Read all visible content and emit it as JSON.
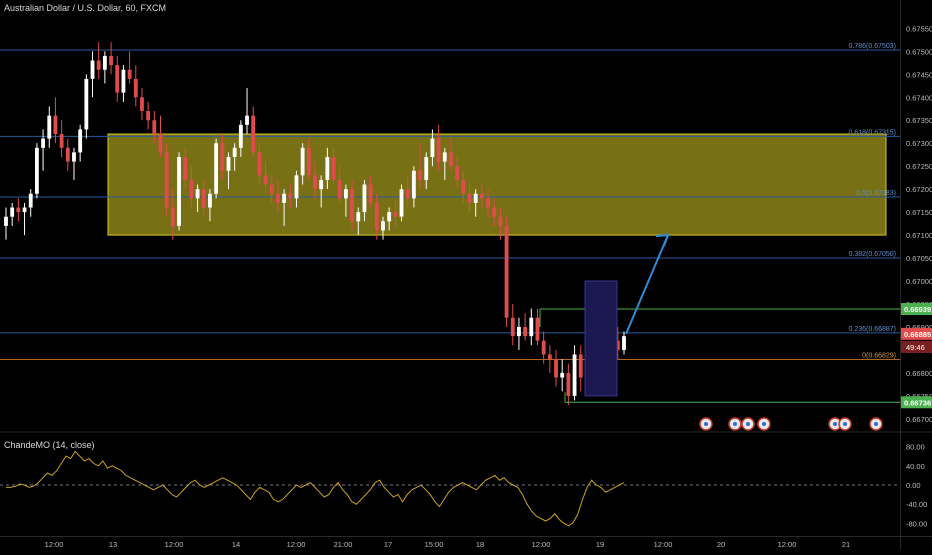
{
  "header": {
    "title": "Australian Dollar / U.S. Dollar, 60, FXCM"
  },
  "indicator": {
    "title": "ChandeMO (14, close)"
  },
  "colors": {
    "background": "#000000",
    "up": "#ffffff",
    "down": "#e04c4c",
    "zone_fill": "#8c8418",
    "zone_stroke": "#d6c82a",
    "fib_line": "#2a5c9c",
    "fib_label": "#5e8fd0",
    "fib_zero": "#b5651d",
    "green_line": "#4caf50",
    "arrow": "#2e8bd6",
    "highlight": "#1c1950",
    "cmo_line": "#c9a227",
    "price_tag": "#e04c4c",
    "price_tag_text": "#ffffff"
  },
  "price_axis": {
    "ticks": [
      "0.67550",
      "0.67500",
      "0.67450",
      "0.67400",
      "0.67350",
      "0.67300",
      "0.67250",
      "0.67200",
      "0.67150",
      "0.67100",
      "0.67050",
      "0.67000",
      "0.66950",
      "0.66900",
      "0.66850",
      "0.66800",
      "0.66750",
      "0.66700"
    ]
  },
  "time_axis": {
    "labels": [
      "12:00",
      "13",
      "12:00",
      "14",
      "12:00",
      "21:00",
      "17",
      "15:00",
      "18",
      "12:00",
      "19",
      "12:00",
      "20",
      "12:00",
      "21"
    ]
  },
  "cmo_axis": {
    "ticks": [
      "80.00",
      "40.00",
      "0.00",
      "-40.00",
      "-80.00"
    ]
  },
  "fib_levels": [
    {
      "label": "0.786(0.67503)",
      "price": 0.67503
    },
    {
      "label": "0.618(0.67315)",
      "price": 0.67315
    },
    {
      "label": "0.5(0.67183)",
      "price": 0.67183
    },
    {
      "label": "0.382(0.67050)",
      "price": 0.6705
    },
    {
      "label": "0.236(0.66887)",
      "price": 0.66887
    },
    {
      "label": "0(0.66829)",
      "price": 0.66829
    }
  ],
  "tags": {
    "top": {
      "text": "0.66939",
      "price": 0.66939
    },
    "current": {
      "text": "0.66885",
      "countdown": "49:46",
      "price": 0.66885
    },
    "bottom": {
      "text": "0.66736",
      "price": 0.66736
    }
  },
  "chart_data": {
    "type": "candlestick",
    "symbol": "Australian Dollar / U.S. Dollar, 60, FXCM",
    "ylim": [
      0.6668,
      0.6759
    ],
    "supply_zone": {
      "top": 0.6732,
      "bottom": 0.671
    },
    "cmo": {
      "name": "ChandeMO (14, close)",
      "ylim": [
        -100,
        100
      ],
      "values": [
        -5,
        -5,
        -3,
        2,
        0,
        -5,
        -2,
        5,
        15,
        25,
        20,
        30,
        45,
        60,
        55,
        70,
        60,
        50,
        55,
        45,
        40,
        50,
        35,
        40,
        35,
        30,
        20,
        15,
        10,
        5,
        0,
        -5,
        -10,
        -5,
        0,
        -10,
        -20,
        -25,
        -15,
        -5,
        5,
        10,
        0,
        -5,
        0,
        5,
        10,
        15,
        10,
        5,
        0,
        -10,
        -20,
        -30,
        -15,
        -5,
        -10,
        -15,
        -30,
        -35,
        -30,
        -20,
        -10,
        0,
        -5,
        0,
        5,
        -5,
        -15,
        -25,
        -20,
        -5,
        5,
        -10,
        -20,
        -35,
        -40,
        -30,
        -20,
        -10,
        5,
        10,
        -5,
        -15,
        -25,
        -20,
        -35,
        -20,
        -10,
        -5,
        0,
        -10,
        -20,
        -35,
        -45,
        -30,
        -15,
        -5,
        0,
        5,
        0,
        -5,
        -10,
        0,
        10,
        15,
        20,
        10,
        15,
        5,
        0,
        -5,
        -20,
        -40,
        -55,
        -65,
        -70,
        -75,
        -70,
        -60,
        -72,
        -80,
        -85,
        -78,
        -60,
        -30,
        -5,
        10,
        0,
        -5,
        -15,
        -10,
        -5,
        0,
        5
      ]
    },
    "candles": [
      [
        0.6712,
        0.6716,
        0.6709,
        0.6714
      ],
      [
        0.6714,
        0.6717,
        0.6712,
        0.6716
      ],
      [
        0.6716,
        0.6718,
        0.6713,
        0.6715
      ],
      [
        0.6715,
        0.6717,
        0.671,
        0.6716
      ],
      [
        0.6716,
        0.672,
        0.6714,
        0.6719
      ],
      [
        0.6719,
        0.673,
        0.6718,
        0.6729
      ],
      [
        0.6729,
        0.6733,
        0.6724,
        0.6731
      ],
      [
        0.6731,
        0.6738,
        0.6729,
        0.6736
      ],
      [
        0.6736,
        0.674,
        0.673,
        0.6732
      ],
      [
        0.6732,
        0.6735,
        0.6727,
        0.6729
      ],
      [
        0.6729,
        0.6731,
        0.6724,
        0.6726
      ],
      [
        0.6726,
        0.6729,
        0.6722,
        0.6728
      ],
      [
        0.6728,
        0.6734,
        0.6726,
        0.6733
      ],
      [
        0.6733,
        0.6745,
        0.6731,
        0.6744
      ],
      [
        0.6744,
        0.675,
        0.674,
        0.6748
      ],
      [
        0.6748,
        0.6752,
        0.6744,
        0.6746
      ],
      [
        0.6746,
        0.675,
        0.6743,
        0.6749
      ],
      [
        0.6749,
        0.6752,
        0.6745,
        0.6747
      ],
      [
        0.6747,
        0.6749,
        0.6739,
        0.6741
      ],
      [
        0.6741,
        0.6747,
        0.6739,
        0.6746
      ],
      [
        0.6746,
        0.675,
        0.6743,
        0.6744
      ],
      [
        0.6744,
        0.6747,
        0.6738,
        0.674
      ],
      [
        0.674,
        0.6742,
        0.6735,
        0.6737
      ],
      [
        0.6737,
        0.6739,
        0.6733,
        0.6735
      ],
      [
        0.6735,
        0.6737,
        0.673,
        0.6732
      ],
      [
        0.6732,
        0.6736,
        0.6727,
        0.6728
      ],
      [
        0.6728,
        0.673,
        0.6714,
        0.6716
      ],
      [
        0.6716,
        0.672,
        0.6709,
        0.6712
      ],
      [
        0.6712,
        0.6728,
        0.6711,
        0.6727
      ],
      [
        0.6727,
        0.6729,
        0.672,
        0.6722
      ],
      [
        0.6722,
        0.6725,
        0.6716,
        0.6718
      ],
      [
        0.6718,
        0.6721,
        0.6715,
        0.672
      ],
      [
        0.672,
        0.6722,
        0.6714,
        0.6716
      ],
      [
        0.6716,
        0.672,
        0.6713,
        0.6719
      ],
      [
        0.6719,
        0.6731,
        0.6718,
        0.673
      ],
      [
        0.673,
        0.6732,
        0.6722,
        0.6724
      ],
      [
        0.6724,
        0.6728,
        0.672,
        0.6727
      ],
      [
        0.6727,
        0.673,
        0.6724,
        0.6729
      ],
      [
        0.6729,
        0.6735,
        0.6727,
        0.6734
      ],
      [
        0.6734,
        0.6742,
        0.6732,
        0.6736
      ],
      [
        0.6736,
        0.6738,
        0.6727,
        0.6728
      ],
      [
        0.6728,
        0.673,
        0.6721,
        0.6723
      ],
      [
        0.6723,
        0.6726,
        0.6719,
        0.6721
      ],
      [
        0.6721,
        0.6723,
        0.6717,
        0.6719
      ],
      [
        0.6719,
        0.6722,
        0.6715,
        0.6717
      ],
      [
        0.6717,
        0.672,
        0.6712,
        0.6719
      ],
      [
        0.6719,
        0.6721,
        0.6716,
        0.6718
      ],
      [
        0.6718,
        0.6724,
        0.6716,
        0.6723
      ],
      [
        0.6723,
        0.673,
        0.6721,
        0.6729
      ],
      [
        0.6729,
        0.6731,
        0.6722,
        0.6723
      ],
      [
        0.6723,
        0.6726,
        0.6718,
        0.672
      ],
      [
        0.672,
        0.6723,
        0.6716,
        0.6722
      ],
      [
        0.6722,
        0.6729,
        0.672,
        0.6727
      ],
      [
        0.6727,
        0.6729,
        0.6721,
        0.6722
      ],
      [
        0.6722,
        0.6725,
        0.6717,
        0.6718
      ],
      [
        0.6718,
        0.6721,
        0.6714,
        0.672
      ],
      [
        0.672,
        0.6722,
        0.6711,
        0.6713
      ],
      [
        0.6713,
        0.6716,
        0.671,
        0.6715
      ],
      [
        0.6715,
        0.6722,
        0.6713,
        0.6721
      ],
      [
        0.6721,
        0.6723,
        0.6716,
        0.6717
      ],
      [
        0.6717,
        0.6719,
        0.6709,
        0.6711
      ],
      [
        0.6711,
        0.6714,
        0.6709,
        0.6713
      ],
      [
        0.6713,
        0.6716,
        0.6711,
        0.6715
      ],
      [
        0.6715,
        0.6718,
        0.6712,
        0.6714
      ],
      [
        0.6714,
        0.6721,
        0.6713,
        0.672
      ],
      [
        0.672,
        0.6723,
        0.6716,
        0.6718
      ],
      [
        0.6718,
        0.6725,
        0.6716,
        0.6724
      ],
      [
        0.6724,
        0.673,
        0.672,
        0.6722
      ],
      [
        0.6722,
        0.6728,
        0.672,
        0.6727
      ],
      [
        0.6727,
        0.6733,
        0.6725,
        0.6731
      ],
      [
        0.6731,
        0.6734,
        0.6724,
        0.6726
      ],
      [
        0.6726,
        0.6729,
        0.6722,
        0.6728
      ],
      [
        0.6728,
        0.6731,
        0.6724,
        0.6725
      ],
      [
        0.6725,
        0.6727,
        0.672,
        0.6722
      ],
      [
        0.6722,
        0.6724,
        0.6717,
        0.6719
      ],
      [
        0.6719,
        0.6721,
        0.6715,
        0.6717
      ],
      [
        0.6717,
        0.672,
        0.6714,
        0.6719
      ],
      [
        0.6719,
        0.6721,
        0.6716,
        0.6718
      ],
      [
        0.6718,
        0.672,
        0.6714,
        0.6716
      ],
      [
        0.6716,
        0.6718,
        0.6712,
        0.6714
      ],
      [
        0.6714,
        0.6716,
        0.6709,
        0.6712
      ],
      [
        0.6712,
        0.6714,
        0.669,
        0.6692
      ],
      [
        0.6692,
        0.6695,
        0.6686,
        0.6688
      ],
      [
        0.6688,
        0.6692,
        0.6685,
        0.669
      ],
      [
        0.669,
        0.6693,
        0.6687,
        0.6688
      ],
      [
        0.6688,
        0.6694,
        0.6686,
        0.6692
      ],
      [
        0.6692,
        0.6694,
        0.6686,
        0.6687
      ],
      [
        0.6687,
        0.6689,
        0.6682,
        0.6684
      ],
      [
        0.6684,
        0.6686,
        0.668,
        0.6683
      ],
      [
        0.6683,
        0.6685,
        0.6677,
        0.6679
      ],
      [
        0.6679,
        0.6683,
        0.6676,
        0.668
      ],
      [
        0.668,
        0.6682,
        0.6673,
        0.6675
      ],
      [
        0.6675,
        0.6686,
        0.6674,
        0.6684
      ],
      [
        0.6684,
        0.6686,
        0.6676,
        0.6679
      ],
      [
        0.6679,
        0.6683,
        0.6675,
        0.6677
      ],
      [
        0.6677,
        0.6695,
        0.6676,
        0.6692
      ],
      [
        0.6692,
        0.6699,
        0.669,
        0.6697
      ],
      [
        0.6697,
        0.6698,
        0.6689,
        0.669
      ],
      [
        0.669,
        0.6692,
        0.6685,
        0.6687
      ],
      [
        0.6687,
        0.669,
        0.6683,
        0.6685
      ],
      [
        0.6685,
        0.6689,
        0.6684,
        0.6688
      ]
    ]
  }
}
